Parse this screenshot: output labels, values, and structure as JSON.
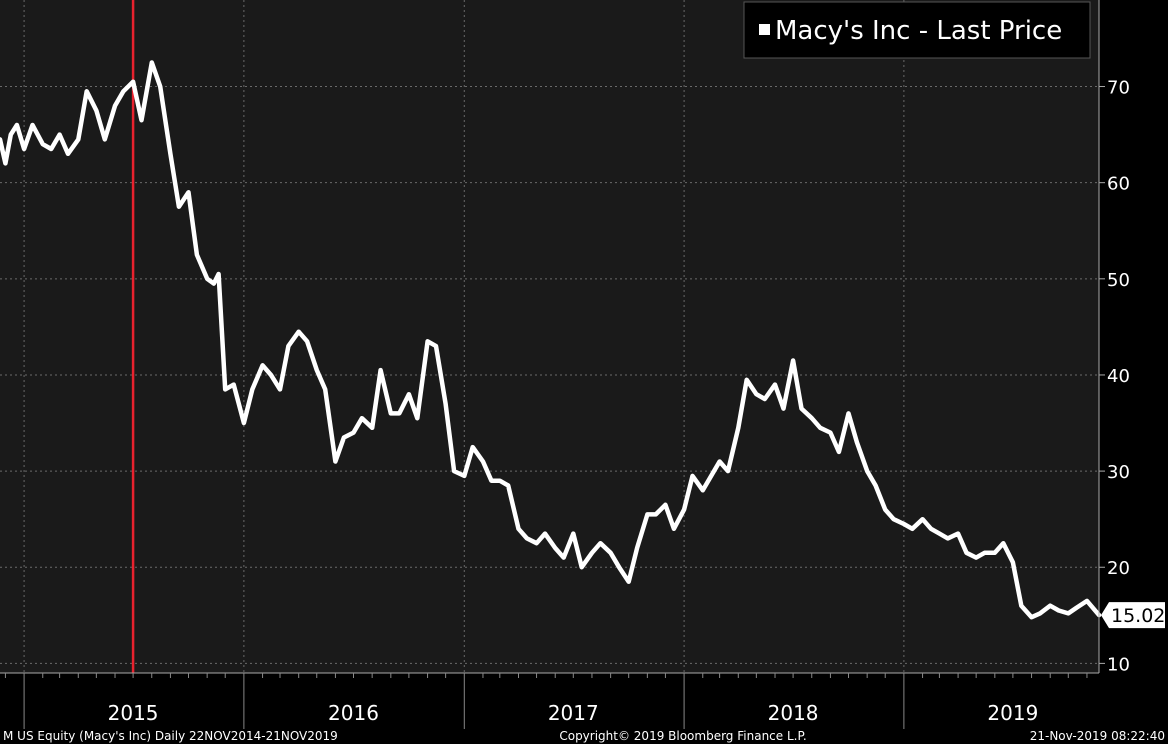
{
  "chart_data": {
    "type": "line",
    "title": "",
    "xlabel": "",
    "ylabel": "",
    "ylim": [
      9,
      79
    ],
    "xlim": [
      "2014-11-22",
      "2019-11-21"
    ],
    "y_ticks": [
      10,
      20,
      30,
      40,
      50,
      60,
      70
    ],
    "x_ticks": [
      {
        "label": "2015",
        "date": "2015-07-01"
      },
      {
        "label": "2016",
        "date": "2016-07-01"
      },
      {
        "label": "2017",
        "date": "2017-07-01"
      },
      {
        "label": "2018",
        "date": "2018-07-01"
      },
      {
        "label": "2019",
        "date": "2019-07-01"
      }
    ],
    "grid": true,
    "legend_position": "top-right",
    "last_value_label": "15.02",
    "marker_line_date": "2015-07-01",
    "series": [
      {
        "name": "Macy's Inc - Last Price",
        "color": "#ffffff",
        "x": [
          "2014-11-22",
          "2014-12-01",
          "2014-12-10",
          "2014-12-20",
          "2015-01-01",
          "2015-01-15",
          "2015-02-01",
          "2015-02-15",
          "2015-03-01",
          "2015-03-15",
          "2015-04-01",
          "2015-04-15",
          "2015-05-01",
          "2015-05-15",
          "2015-06-01",
          "2015-06-15",
          "2015-07-01",
          "2015-07-15",
          "2015-08-01",
          "2015-08-15",
          "2015-09-01",
          "2015-09-15",
          "2015-10-01",
          "2015-10-15",
          "2015-11-01",
          "2015-11-12",
          "2015-11-20",
          "2015-12-01",
          "2015-12-15",
          "2016-01-01",
          "2016-01-15",
          "2016-02-01",
          "2016-02-15",
          "2016-03-01",
          "2016-03-15",
          "2016-04-01",
          "2016-04-15",
          "2016-05-01",
          "2016-05-15",
          "2016-06-01",
          "2016-06-15",
          "2016-07-01",
          "2016-07-15",
          "2016-08-01",
          "2016-08-15",
          "2016-09-01",
          "2016-09-15",
          "2016-10-01",
          "2016-10-15",
          "2016-11-01",
          "2016-11-15",
          "2016-12-01",
          "2016-12-15",
          "2017-01-01",
          "2017-01-15",
          "2017-02-01",
          "2017-02-15",
          "2017-03-01",
          "2017-03-15",
          "2017-04-01",
          "2017-04-15",
          "2017-05-01",
          "2017-05-15",
          "2017-06-01",
          "2017-06-15",
          "2017-07-01",
          "2017-07-15",
          "2017-08-01",
          "2017-08-15",
          "2017-09-01",
          "2017-09-15",
          "2017-10-01",
          "2017-10-15",
          "2017-11-01",
          "2017-11-15",
          "2017-12-01",
          "2017-12-15",
          "2018-01-01",
          "2018-01-15",
          "2018-02-01",
          "2018-02-15",
          "2018-03-01",
          "2018-03-15",
          "2018-04-01",
          "2018-04-15",
          "2018-05-01",
          "2018-05-15",
          "2018-06-01",
          "2018-06-15",
          "2018-07-01",
          "2018-07-15",
          "2018-08-01",
          "2018-08-15",
          "2018-09-01",
          "2018-09-15",
          "2018-10-01",
          "2018-10-15",
          "2018-11-01",
          "2018-11-15",
          "2018-12-01",
          "2018-12-15",
          "2019-01-01",
          "2019-01-15",
          "2019-02-01",
          "2019-02-15",
          "2019-03-01",
          "2019-03-15",
          "2019-04-01",
          "2019-04-15",
          "2019-05-01",
          "2019-05-15",
          "2019-06-01",
          "2019-06-15",
          "2019-07-01",
          "2019-07-15",
          "2019-08-01",
          "2019-08-15",
          "2019-09-01",
          "2019-09-15",
          "2019-10-01",
          "2019-10-15",
          "2019-11-01",
          "2019-11-21"
        ],
        "values": [
          64.5,
          62.0,
          65.0,
          66.0,
          63.5,
          66.0,
          64.0,
          63.5,
          65.0,
          63.0,
          64.5,
          69.5,
          67.5,
          64.5,
          68.0,
          69.5,
          70.5,
          66.5,
          72.5,
          70.0,
          63.0,
          57.5,
          59.0,
          52.5,
          50.0,
          49.5,
          50.5,
          38.5,
          39.0,
          35.0,
          38.5,
          41.0,
          40.0,
          38.5,
          43.0,
          44.5,
          43.5,
          40.5,
          38.5,
          31.0,
          33.5,
          34.0,
          35.5,
          34.5,
          40.5,
          36.0,
          36.0,
          38.0,
          35.5,
          43.5,
          43.0,
          37.0,
          30.0,
          29.5,
          32.5,
          31.0,
          29.0,
          29.0,
          28.5,
          24.0,
          23.0,
          22.5,
          23.5,
          22.0,
          21.0,
          23.5,
          20.0,
          21.5,
          22.5,
          21.5,
          20.0,
          18.5,
          22.0,
          25.5,
          25.5,
          26.5,
          24.0,
          26.0,
          29.5,
          28.0,
          29.5,
          31.0,
          30.0,
          34.5,
          39.5,
          38.0,
          37.5,
          39.0,
          36.5,
          41.5,
          36.5,
          35.5,
          34.5,
          34.0,
          32.0,
          36.0,
          33.0,
          30.0,
          28.5,
          26.0,
          25.0,
          24.5,
          24.0,
          25.0,
          24.0,
          23.5,
          23.0,
          23.5,
          21.5,
          21.0,
          21.5,
          21.5,
          22.5,
          20.5,
          16.0,
          14.8,
          15.2,
          16.0,
          15.5,
          15.2,
          15.8,
          16.5,
          15.02
        ]
      }
    ]
  },
  "legend": {
    "label": "Macy's Inc - Last Price"
  },
  "footer": {
    "left": "M US Equity (Macy's Inc)  Daily 22NOV2014-21NOV2019",
    "center": "Copyright© 2019 Bloomberg Finance L.P.",
    "right": "21-Nov-2019 08:22:40"
  }
}
